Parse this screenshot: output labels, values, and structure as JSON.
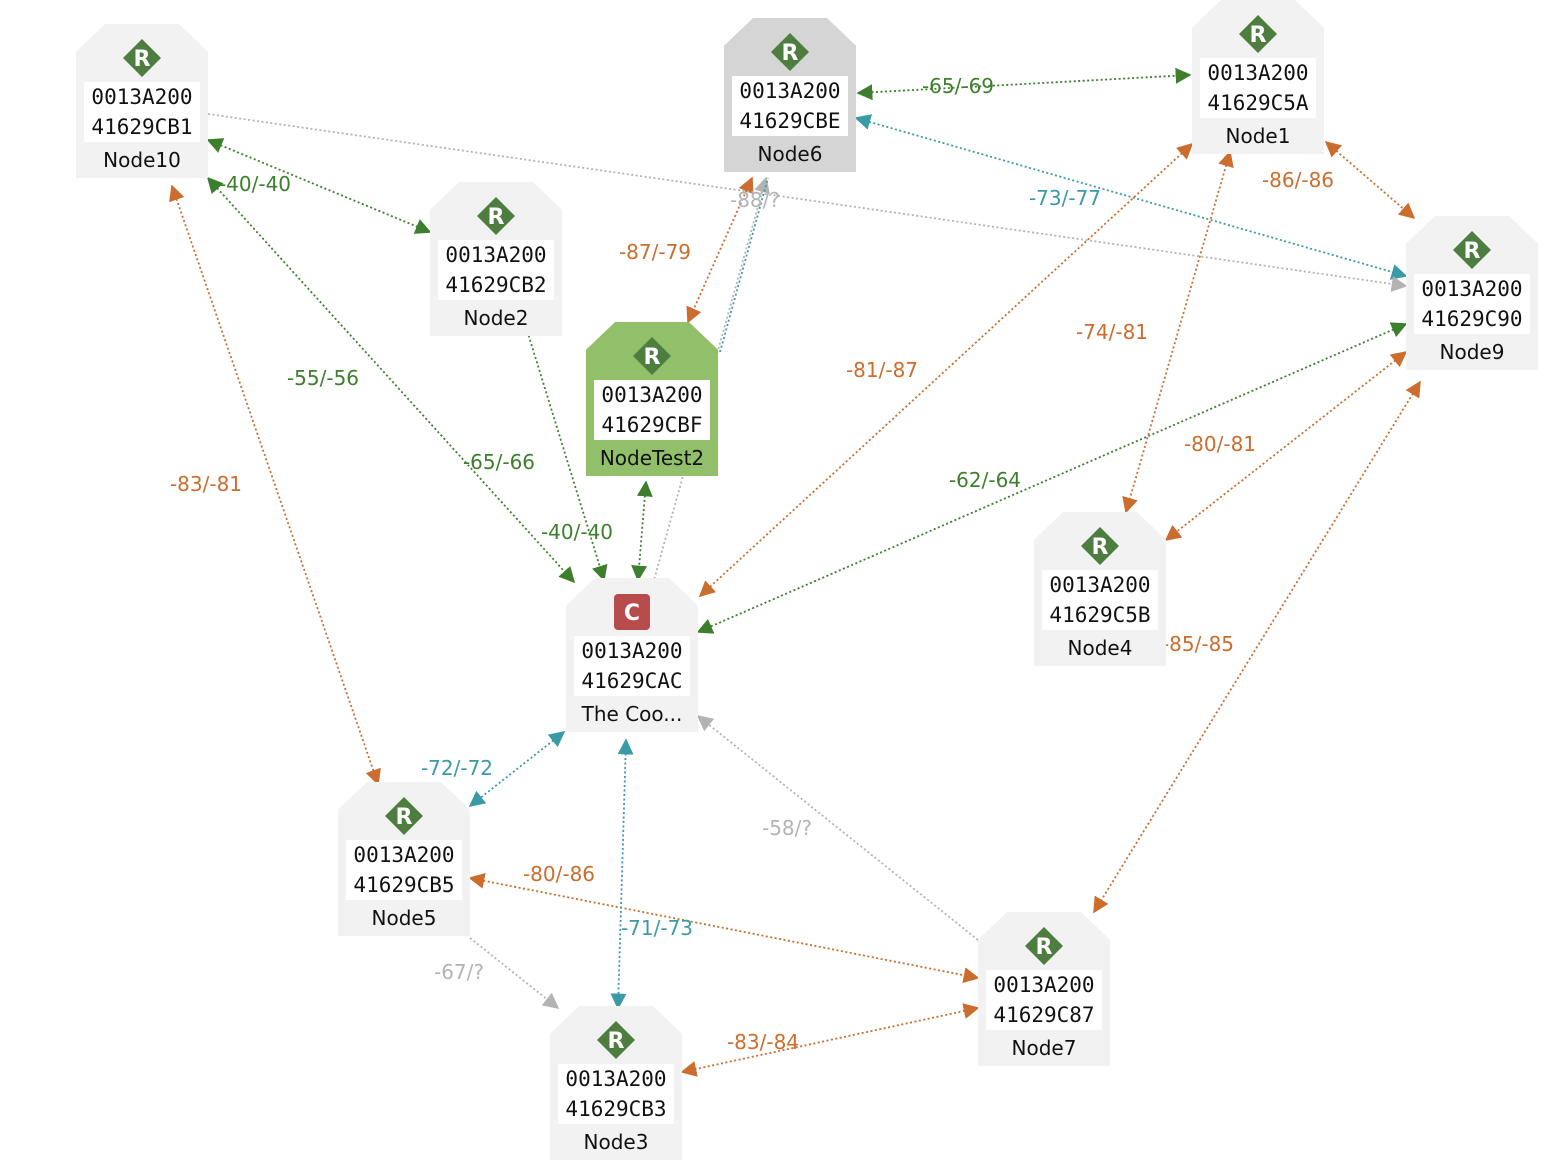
{
  "colors": {
    "good": "#3d7f2c",
    "medium": "#3a9aa6",
    "poor": "#cc6d2d",
    "unknown": "#b3b3b3",
    "router_badge": "#4d7d3f",
    "coordinator_badge": "#b84c4c"
  },
  "nodes": [
    {
      "id": "n10",
      "badge": "R",
      "badge_type": "router",
      "addr1": "0013A200",
      "addr2": "41629CB1",
      "name": "Node10",
      "state": "normal"
    },
    {
      "id": "n6",
      "badge": "R",
      "badge_type": "router",
      "addr1": "0013A200",
      "addr2": "41629CBE",
      "name": "Node6",
      "state": "selected"
    },
    {
      "id": "n1",
      "badge": "R",
      "badge_type": "router",
      "addr1": "0013A200",
      "addr2": "41629C5A",
      "name": "Node1",
      "state": "normal"
    },
    {
      "id": "n2",
      "badge": "R",
      "badge_type": "router",
      "addr1": "0013A200",
      "addr2": "41629CB2",
      "name": "Node2",
      "state": "normal"
    },
    {
      "id": "nt2",
      "badge": "R",
      "badge_type": "router",
      "addr1": "0013A200",
      "addr2": "41629CBF",
      "name": "NodeTest2",
      "state": "highlight"
    },
    {
      "id": "n9",
      "badge": "R",
      "badge_type": "router",
      "addr1": "0013A200",
      "addr2": "41629C90",
      "name": "Node9",
      "state": "normal"
    },
    {
      "id": "c",
      "badge": "C",
      "badge_type": "coordinator",
      "addr1": "0013A200",
      "addr2": "41629CAC",
      "name": "The Coo...",
      "state": "normal"
    },
    {
      "id": "n4",
      "badge": "R",
      "badge_type": "router",
      "addr1": "0013A200",
      "addr2": "41629C5B",
      "name": "Node4",
      "state": "normal"
    },
    {
      "id": "n5",
      "badge": "R",
      "badge_type": "router",
      "addr1": "0013A200",
      "addr2": "41629CB5",
      "name": "Node5",
      "state": "normal"
    },
    {
      "id": "n7",
      "badge": "R",
      "badge_type": "router",
      "addr1": "0013A200",
      "addr2": "41629C87",
      "name": "Node7",
      "state": "normal"
    },
    {
      "id": "n3",
      "badge": "R",
      "badge_type": "router",
      "addr1": "0013A200",
      "addr2": "41629CB3",
      "name": "Node3",
      "state": "normal"
    }
  ],
  "links": [
    {
      "label": "-65/-69",
      "quality": "good"
    },
    {
      "label": "-40/-40",
      "quality": "good"
    },
    {
      "label": "-55/-56",
      "quality": "good"
    },
    {
      "label": "-83/-81",
      "quality": "poor"
    },
    {
      "label": "-88/?",
      "quality": "unknown"
    },
    {
      "label": "-87/-79",
      "quality": "poor"
    },
    {
      "label": "-73/-77",
      "quality": "medium"
    },
    {
      "label": "-86/-86",
      "quality": "poor"
    },
    {
      "label": "-74/-81",
      "quality": "poor"
    },
    {
      "label": "-81/-87",
      "quality": "poor"
    },
    {
      "label": "-65/-66",
      "quality": "good"
    },
    {
      "label": "-40/-40",
      "quality": "good"
    },
    {
      "label": "-62/-64",
      "quality": "good"
    },
    {
      "label": "-80/-81",
      "quality": "poor"
    },
    {
      "label": "-85/-85",
      "quality": "poor"
    },
    {
      "label": "-72/-72",
      "quality": "medium"
    },
    {
      "label": "-58/?",
      "quality": "unknown"
    },
    {
      "label": "-80/-86",
      "quality": "poor"
    },
    {
      "label": "-71/-73",
      "quality": "medium"
    },
    {
      "label": "-67/?",
      "quality": "unknown"
    },
    {
      "label": "-83/-84",
      "quality": "poor"
    },
    {
      "label": "",
      "quality": "unknown"
    },
    {
      "label": "",
      "quality": "medium"
    }
  ]
}
